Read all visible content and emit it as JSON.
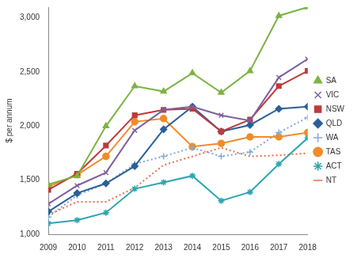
{
  "chart_data": {
    "type": "line",
    "y_label": "$ per annum",
    "categories": [
      "2009",
      "2010",
      "2011",
      "2012",
      "2013",
      "2014",
      "2015",
      "2016",
      "2017",
      "2018"
    ],
    "ylim": [
      1000,
      3100
    ],
    "yticks": [
      {
        "value": 1000,
        "label": "1,000"
      },
      {
        "value": 1500,
        "label": "1,500"
      },
      {
        "value": 2000,
        "label": "2,000"
      },
      {
        "value": 2500,
        "label": "2,500"
      },
      {
        "value": 3000,
        "label": "3,000"
      }
    ],
    "grid": false,
    "legend": "right",
    "series": [
      {
        "name": "SA",
        "color": "#7cb342",
        "marker": "triangle",
        "line_style": "solid",
        "values": [
          1460,
          1540,
          2000,
          2370,
          2320,
          2490,
          2310,
          2510,
          3020,
          3100
        ]
      },
      {
        "name": "VIC",
        "color": "#7e5f9e",
        "marker": "x",
        "line_style": "solid",
        "values": [
          1280,
          1450,
          1570,
          1960,
          2150,
          2180,
          2100,
          2050,
          2450,
          2620
        ]
      },
      {
        "name": "NSW",
        "color": "#c0393b",
        "marker": "square",
        "line_style": "solid",
        "values": [
          1410,
          1560,
          1820,
          2100,
          2150,
          2160,
          1950,
          2060,
          2370,
          2510
        ]
      },
      {
        "name": "QLD",
        "color": "#2b5f97",
        "marker": "diamond",
        "line_style": "solid",
        "values": [
          1210,
          1380,
          1470,
          1630,
          1970,
          2180,
          1950,
          2010,
          2160,
          2180
        ]
      },
      {
        "name": "WA",
        "color": "#86a8d6",
        "marker": "plus",
        "line_style": "dotted",
        "values": [
          1160,
          1360,
          1470,
          1650,
          1720,
          1800,
          1720,
          1760,
          1940,
          2080
        ]
      },
      {
        "name": "TAS",
        "color": "#f08c2a",
        "marker": "circle",
        "line_style": "solid",
        "values": [
          1440,
          1550,
          1720,
          2040,
          2070,
          1810,
          1840,
          1900,
          1900,
          1940
        ]
      },
      {
        "name": "ACT",
        "color": "#2aa6b0",
        "marker": "star",
        "line_style": "solid",
        "values": [
          1100,
          1130,
          1200,
          1420,
          1480,
          1540,
          1310,
          1390,
          1650,
          1890
        ]
      },
      {
        "name": "NT",
        "color": "#e8704a",
        "marker": "none",
        "line_style": "dotted",
        "values": [
          1180,
          1300,
          1300,
          1430,
          1640,
          1720,
          1800,
          1720,
          1730,
          1750
        ]
      }
    ]
  }
}
